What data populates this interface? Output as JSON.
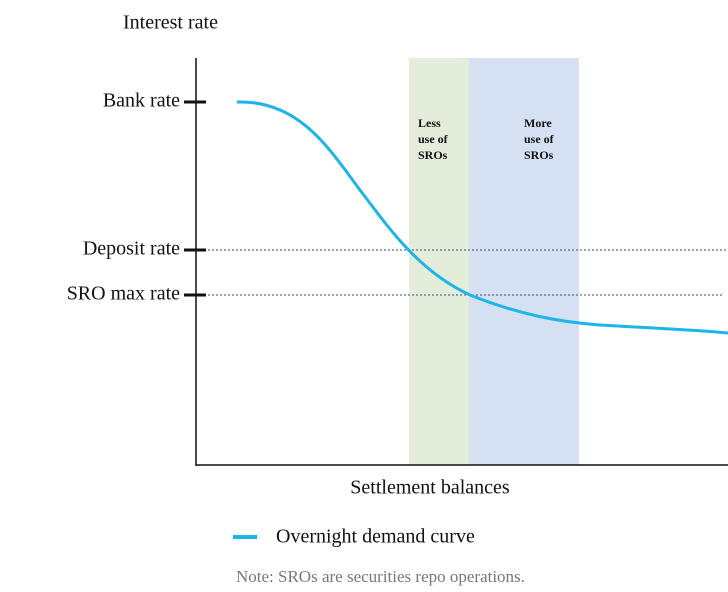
{
  "diagram": {
    "y_axis_label": "Interest rate",
    "x_axis_label": "Settlement balances",
    "y_levels": [
      "Bank rate",
      "Deposit rate",
      "SRO max rate"
    ],
    "bands": [
      {
        "lines": [
          "Less",
          "use of",
          "SROs"
        ]
      },
      {
        "lines": [
          "More",
          "use of",
          "SROs"
        ]
      }
    ],
    "legend": "Overnight demand curve",
    "note": "Note: SROs are securities repo operations."
  }
}
